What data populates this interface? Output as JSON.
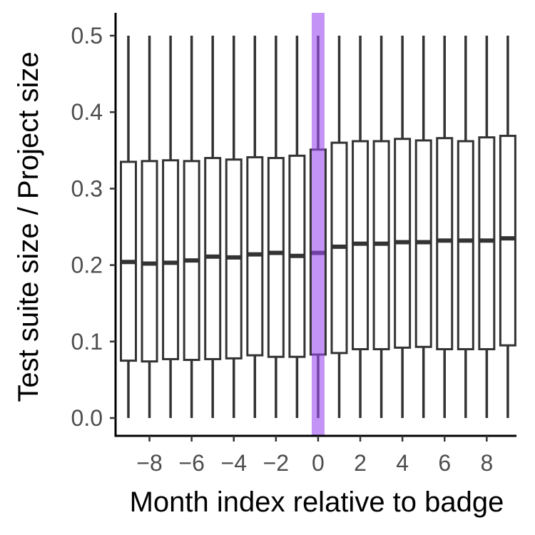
{
  "chart_data": {
    "type": "boxplot",
    "xlabel": "Month index relative to badge",
    "ylabel": "Test suite size / Project size",
    "ylim": [
      0.0,
      0.5
    ],
    "xlim": [
      -9.5,
      9.5
    ],
    "x_ticks": [
      -8,
      -6,
      -4,
      -2,
      0,
      2,
      4,
      6,
      8
    ],
    "x_tick_labels": [
      "−8",
      "−6",
      "−4",
      "−2",
      "0",
      "2",
      "4",
      "6",
      "8"
    ],
    "y_ticks": [
      0.0,
      0.1,
      0.2,
      0.3,
      0.4,
      0.5
    ],
    "y_tick_labels": [
      "0.0",
      "0.1",
      "0.2",
      "0.3",
      "0.4",
      "0.5"
    ],
    "highlight": {
      "x": 0,
      "color": "#9b4dee"
    },
    "box_color": "#333333",
    "boxes": [
      {
        "x": -9,
        "lower_whisker": 0.0,
        "q1": 0.075,
        "median": 0.204,
        "q3": 0.335,
        "upper_whisker": 0.5
      },
      {
        "x": -8,
        "lower_whisker": 0.0,
        "q1": 0.074,
        "median": 0.202,
        "q3": 0.336,
        "upper_whisker": 0.5
      },
      {
        "x": -7,
        "lower_whisker": 0.0,
        "q1": 0.077,
        "median": 0.203,
        "q3": 0.337,
        "upper_whisker": 0.5
      },
      {
        "x": -6,
        "lower_whisker": 0.0,
        "q1": 0.076,
        "median": 0.206,
        "q3": 0.336,
        "upper_whisker": 0.5
      },
      {
        "x": -5,
        "lower_whisker": 0.0,
        "q1": 0.077,
        "median": 0.211,
        "q3": 0.34,
        "upper_whisker": 0.5
      },
      {
        "x": -4,
        "lower_whisker": 0.0,
        "q1": 0.078,
        "median": 0.21,
        "q3": 0.338,
        "upper_whisker": 0.5
      },
      {
        "x": -3,
        "lower_whisker": 0.0,
        "q1": 0.082,
        "median": 0.214,
        "q3": 0.341,
        "upper_whisker": 0.5
      },
      {
        "x": -2,
        "lower_whisker": 0.0,
        "q1": 0.08,
        "median": 0.216,
        "q3": 0.34,
        "upper_whisker": 0.5
      },
      {
        "x": -1,
        "lower_whisker": 0.0,
        "q1": 0.08,
        "median": 0.212,
        "q3": 0.343,
        "upper_whisker": 0.5
      },
      {
        "x": 0,
        "lower_whisker": 0.0,
        "q1": 0.083,
        "median": 0.216,
        "q3": 0.351,
        "upper_whisker": 0.5
      },
      {
        "x": 1,
        "lower_whisker": 0.0,
        "q1": 0.085,
        "median": 0.224,
        "q3": 0.36,
        "upper_whisker": 0.5
      },
      {
        "x": 2,
        "lower_whisker": 0.0,
        "q1": 0.09,
        "median": 0.228,
        "q3": 0.362,
        "upper_whisker": 0.5
      },
      {
        "x": 3,
        "lower_whisker": 0.0,
        "q1": 0.09,
        "median": 0.228,
        "q3": 0.362,
        "upper_whisker": 0.5
      },
      {
        "x": 4,
        "lower_whisker": 0.0,
        "q1": 0.092,
        "median": 0.23,
        "q3": 0.365,
        "upper_whisker": 0.5
      },
      {
        "x": 5,
        "lower_whisker": 0.0,
        "q1": 0.093,
        "median": 0.23,
        "q3": 0.363,
        "upper_whisker": 0.5
      },
      {
        "x": 6,
        "lower_whisker": 0.0,
        "q1": 0.09,
        "median": 0.232,
        "q3": 0.366,
        "upper_whisker": 0.5
      },
      {
        "x": 7,
        "lower_whisker": 0.0,
        "q1": 0.09,
        "median": 0.232,
        "q3": 0.362,
        "upper_whisker": 0.5
      },
      {
        "x": 8,
        "lower_whisker": 0.0,
        "q1": 0.09,
        "median": 0.232,
        "q3": 0.367,
        "upper_whisker": 0.5
      },
      {
        "x": 9,
        "lower_whisker": 0.0,
        "q1": 0.095,
        "median": 0.235,
        "q3": 0.369,
        "upper_whisker": 0.5
      }
    ]
  }
}
